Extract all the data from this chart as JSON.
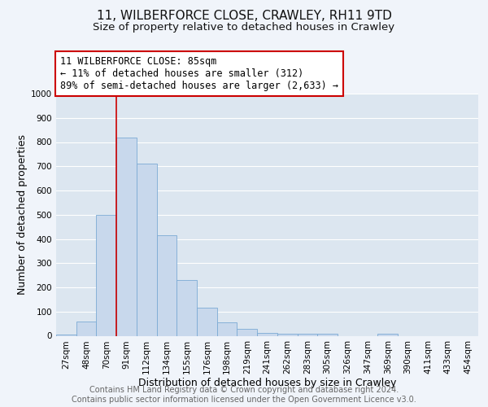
{
  "title": "11, WILBERFORCE CLOSE, CRAWLEY, RH11 9TD",
  "subtitle": "Size of property relative to detached houses in Crawley",
  "xlabel": "Distribution of detached houses by size in Crawley",
  "ylabel": "Number of detached properties",
  "bar_color": "#c8d8ec",
  "bar_edge_color": "#7baad4",
  "background_color": "#f0f4fa",
  "plot_bg_color": "#dce6f0",
  "grid_color": "#ffffff",
  "bin_labels": [
    "27sqm",
    "48sqm",
    "70sqm",
    "91sqm",
    "112sqm",
    "134sqm",
    "155sqm",
    "176sqm",
    "198sqm",
    "219sqm",
    "241sqm",
    "262sqm",
    "283sqm",
    "305sqm",
    "326sqm",
    "347sqm",
    "369sqm",
    "390sqm",
    "411sqm",
    "433sqm",
    "454sqm"
  ],
  "bar_values": [
    5,
    60,
    500,
    820,
    710,
    415,
    230,
    115,
    57,
    30,
    12,
    10,
    10,
    8,
    0,
    0,
    8,
    0,
    0,
    0,
    0
  ],
  "ylim": [
    0,
    1000
  ],
  "yticks": [
    0,
    100,
    200,
    300,
    400,
    500,
    600,
    700,
    800,
    900,
    1000
  ],
  "vline_x_index": 3,
  "vline_color": "#cc0000",
  "annotation_line1": "11 WILBERFORCE CLOSE: 85sqm",
  "annotation_line2": "← 11% of detached houses are smaller (312)",
  "annotation_line3": "89% of semi-detached houses are larger (2,633) →",
  "annotation_box_color": "#ffffff",
  "annotation_box_edge": "#cc0000",
  "footer_line1": "Contains HM Land Registry data © Crown copyright and database right 2024.",
  "footer_line2": "Contains public sector information licensed under the Open Government Licence v3.0.",
  "footer_color": "#666666",
  "title_fontsize": 11,
  "subtitle_fontsize": 9.5,
  "xlabel_fontsize": 9,
  "ylabel_fontsize": 9,
  "tick_fontsize": 7.5,
  "annotation_fontsize": 8.5,
  "footer_fontsize": 7
}
